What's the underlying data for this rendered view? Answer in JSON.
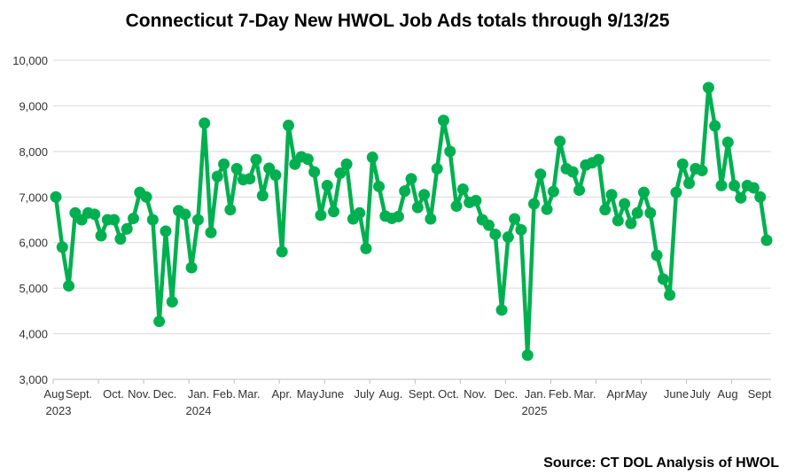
{
  "chart_data": {
    "type": "line",
    "title": "Connecticut 7-Day New HWOL Job Ads totals through 9/13/25",
    "source": "Source: CT DOL Analysis of HWOL",
    "xlabel": "",
    "ylabel": "",
    "ylim": [
      3000,
      10000
    ],
    "y_ticks": [
      "3,000",
      "4,000",
      "5,000",
      "6,000",
      "7,000",
      "8,000",
      "9,000",
      "10,000"
    ],
    "grid": true,
    "legend": "none",
    "line_color": "#00B050",
    "x_labels": [
      "Aug",
      "Sept.",
      "Oct.",
      "Nov.",
      "Dec.",
      "Jan.",
      "Feb.",
      "Mar.",
      "Apr.",
      "May",
      "June",
      "July",
      "Aug.",
      "Sept.",
      "Oct.",
      "Nov.",
      "Dec.",
      "Jan.",
      "Feb.",
      "Mar.",
      "Apr.",
      "May",
      "June",
      "July",
      "Aug",
      "Sept"
    ],
    "year_labels": [
      "2023",
      "2024",
      "2025"
    ],
    "values": [
      7000,
      5900,
      5050,
      6650,
      6500,
      6650,
      6620,
      6150,
      6500,
      6500,
      6080,
      6300,
      6530,
      7100,
      7000,
      6500,
      4270,
      6250,
      4700,
      6700,
      6620,
      5450,
      6500,
      8620,
      6220,
      7450,
      7720,
      6720,
      7620,
      7380,
      7400,
      7820,
      7030,
      7630,
      7480,
      5800,
      8570,
      7720,
      7880,
      7830,
      7550,
      6600,
      7250,
      6680,
      7520,
      7720,
      6520,
      6650,
      5870,
      7870,
      7230,
      6580,
      6530,
      6570,
      7130,
      7400,
      6770,
      7050,
      6520,
      7620,
      8680,
      8000,
      6800,
      7170,
      6880,
      6920,
      6500,
      6380,
      6180,
      4520,
      6120,
      6520,
      6280,
      3530,
      6850,
      7500,
      6730,
      7120,
      8220,
      7620,
      7550,
      7150,
      7700,
      7750,
      7820,
      6720,
      7050,
      6480,
      6850,
      6420,
      6650,
      7100,
      6650,
      5720,
      5200,
      4850,
      7100,
      7720,
      7300,
      7620,
      7580,
      9400,
      8560,
      7250,
      8200,
      7250,
      6980,
      7250,
      7200,
      7000,
      6050
    ]
  }
}
